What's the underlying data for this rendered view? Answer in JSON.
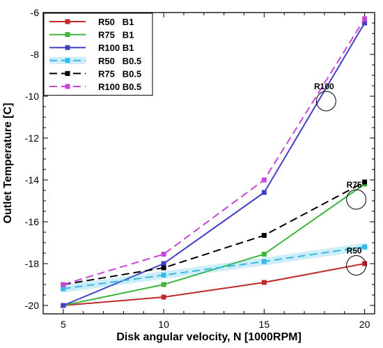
{
  "chart_data": {
    "type": "line",
    "xlabel": "Disk angular velocity, N [1000RPM]",
    "ylabel": "Outlet Temperature [C]",
    "xlim": [
      4,
      20.5
    ],
    "ylim": [
      -20.4,
      -6
    ],
    "x_ticks": [
      5,
      10,
      15,
      20
    ],
    "y_ticks": [
      -20,
      -18,
      -16,
      -14,
      -12,
      -10,
      -8,
      -6
    ],
    "grid": false,
    "legend_position": "top-left",
    "x": [
      5,
      10,
      15,
      20
    ],
    "series": [
      {
        "name": "R50   B1",
        "values": [
          -20.0,
          -19.6,
          -18.9,
          -18.0
        ],
        "color": "#c0282a",
        "dash": "solid",
        "glow": false
      },
      {
        "name": "R75   B1",
        "values": [
          -20.0,
          -19.0,
          -17.55,
          -14.2
        ],
        "color": "#3cb53c",
        "dash": "solid",
        "glow": false
      },
      {
        "name": "R100 B1",
        "values": [
          -20.0,
          -18.0,
          -14.6,
          -6.5
        ],
        "color": "#4040c8",
        "dash": "solid",
        "glow": false
      },
      {
        "name": "R50   B0.5",
        "values": [
          -19.2,
          -18.55,
          -17.9,
          -17.2
        ],
        "color": "#38b8e8",
        "dash": "dashed",
        "glow": true
      },
      {
        "name": "R75   B0.5",
        "values": [
          -19.0,
          -18.2,
          -16.65,
          -14.1
        ],
        "color": "#000000",
        "dash": "dashed",
        "glow": false
      },
      {
        "name": "R100 B0.5",
        "values": [
          -19.0,
          -17.55,
          -14.0,
          -6.3
        ],
        "color": "#c845d8",
        "dash": "dashed",
        "glow": false
      }
    ],
    "annotations": [
      {
        "text": "R100",
        "x": 17.6,
        "y": -9.9
      },
      {
        "text": "R75",
        "x": 19.1,
        "y": -14.6
      },
      {
        "text": "R50",
        "x": 19.1,
        "y": -17.75
      }
    ]
  }
}
